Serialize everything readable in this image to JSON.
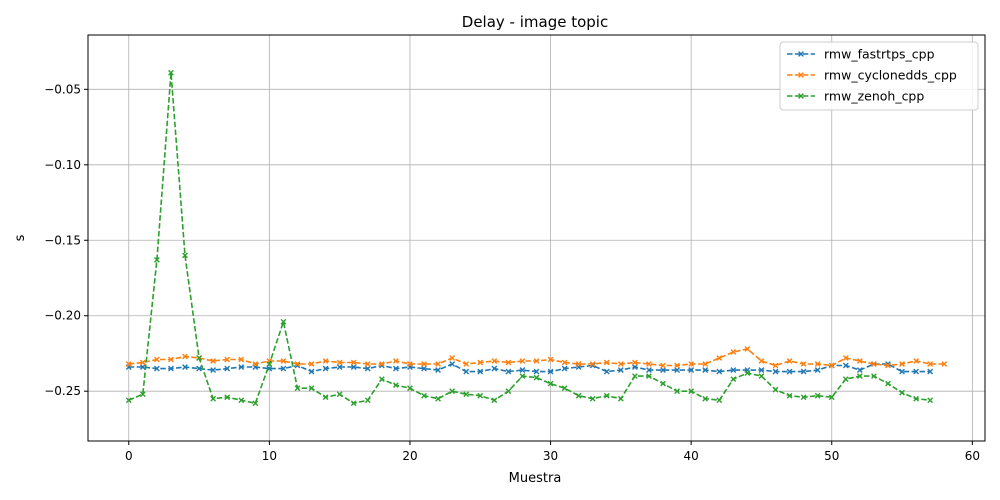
{
  "chart_data": {
    "type": "line",
    "title": "Delay - image topic",
    "xlabel": "Muestra",
    "ylabel": "s",
    "xlim": [
      -2.9,
      60.9
    ],
    "ylim": [
      -0.283,
      -0.014
    ],
    "xticks": [
      0,
      10,
      20,
      30,
      40,
      50,
      60
    ],
    "yticks": [
      -0.25,
      -0.2,
      -0.15,
      -0.1,
      -0.05
    ],
    "xtick_labels": [
      "0",
      "10",
      "20",
      "30",
      "40",
      "50",
      "60"
    ],
    "ytick_labels": [
      "−0.25",
      "−0.20",
      "−0.15",
      "−0.10",
      "−0.05"
    ],
    "grid": true,
    "legend_position": "top-right",
    "series": [
      {
        "name": "rmw_fastrtps_cpp",
        "color": "#1f77b4",
        "x": [
          0,
          1,
          2,
          3,
          4,
          5,
          6,
          7,
          8,
          9,
          10,
          11,
          12,
          13,
          14,
          15,
          16,
          17,
          18,
          19,
          20,
          21,
          22,
          23,
          24,
          25,
          26,
          27,
          28,
          29,
          30,
          31,
          32,
          33,
          34,
          35,
          36,
          37,
          38,
          39,
          40,
          41,
          42,
          43,
          44,
          45,
          46,
          47,
          48,
          49,
          50,
          51,
          52,
          53,
          54,
          55,
          56,
          57
        ],
        "values": [
          -0.234,
          -0.234,
          -0.235,
          -0.235,
          -0.234,
          -0.235,
          -0.236,
          -0.235,
          -0.234,
          -0.234,
          -0.235,
          -0.235,
          -0.233,
          -0.237,
          -0.235,
          -0.234,
          -0.234,
          -0.235,
          -0.233,
          -0.235,
          -0.234,
          -0.235,
          -0.236,
          -0.232,
          -0.237,
          -0.237,
          -0.235,
          -0.237,
          -0.236,
          -0.237,
          -0.237,
          -0.235,
          -0.234,
          -0.233,
          -0.237,
          -0.236,
          -0.234,
          -0.236,
          -0.236,
          -0.236,
          -0.236,
          -0.236,
          -0.237,
          -0.236,
          -0.236,
          -0.236,
          -0.237,
          -0.237,
          -0.237,
          -0.236,
          -0.233,
          -0.233,
          -0.236,
          -0.232,
          -0.232,
          -0.237,
          -0.237,
          -0.237
        ]
      },
      {
        "name": "rmw_cyclonedds_cpp",
        "color": "#ff7f0e",
        "x": [
          0,
          1,
          2,
          3,
          4,
          5,
          6,
          7,
          8,
          9,
          10,
          11,
          12,
          13,
          14,
          15,
          16,
          17,
          18,
          19,
          20,
          21,
          22,
          23,
          24,
          25,
          26,
          27,
          28,
          29,
          30,
          31,
          32,
          33,
          34,
          35,
          36,
          37,
          38,
          39,
          40,
          41,
          42,
          43,
          44,
          45,
          46,
          47,
          48,
          49,
          50,
          51,
          52,
          53,
          54,
          55,
          56,
          57,
          58
        ],
        "values": [
          -0.232,
          -0.231,
          -0.229,
          -0.229,
          -0.227,
          -0.228,
          -0.23,
          -0.229,
          -0.229,
          -0.232,
          -0.23,
          -0.23,
          -0.232,
          -0.232,
          -0.23,
          -0.231,
          -0.231,
          -0.232,
          -0.232,
          -0.23,
          -0.232,
          -0.232,
          -0.232,
          -0.228,
          -0.232,
          -0.231,
          -0.23,
          -0.231,
          -0.23,
          -0.23,
          -0.229,
          -0.231,
          -0.232,
          -0.232,
          -0.231,
          -0.232,
          -0.231,
          -0.232,
          -0.233,
          -0.233,
          -0.232,
          -0.232,
          -0.228,
          -0.224,
          -0.222,
          -0.23,
          -0.233,
          -0.23,
          -0.232,
          -0.232,
          -0.233,
          -0.228,
          -0.23,
          -0.232,
          -0.233,
          -0.232,
          -0.23,
          -0.232,
          -0.232
        ]
      },
      {
        "name": "rmw_zenoh_cpp",
        "color": "#2ca02c",
        "x": [
          0,
          1,
          2,
          3,
          4,
          5,
          6,
          7,
          8,
          9,
          10,
          11,
          12,
          13,
          14,
          15,
          16,
          17,
          18,
          19,
          20,
          21,
          22,
          23,
          24,
          25,
          26,
          27,
          28,
          29,
          30,
          31,
          32,
          33,
          34,
          35,
          36,
          37,
          38,
          39,
          40,
          41,
          42,
          43,
          44,
          45,
          46,
          47,
          48,
          49,
          50,
          51,
          52,
          53,
          54,
          55,
          56,
          57
        ],
        "values": [
          -0.256,
          -0.252,
          -0.163,
          -0.039,
          -0.16,
          -0.228,
          -0.255,
          -0.254,
          -0.256,
          -0.258,
          -0.232,
          -0.204,
          -0.248,
          -0.248,
          -0.254,
          -0.252,
          -0.258,
          -0.256,
          -0.242,
          -0.246,
          -0.248,
          -0.253,
          -0.255,
          -0.25,
          -0.252,
          -0.253,
          -0.256,
          -0.25,
          -0.24,
          -0.241,
          -0.245,
          -0.248,
          -0.253,
          -0.255,
          -0.253,
          -0.255,
          -0.24,
          -0.24,
          -0.245,
          -0.25,
          -0.25,
          -0.255,
          -0.256,
          -0.242,
          -0.238,
          -0.24,
          -0.249,
          -0.253,
          -0.254,
          -0.253,
          -0.254,
          -0.242,
          -0.24,
          -0.24,
          -0.245,
          -0.251,
          -0.255,
          -0.256
        ]
      }
    ]
  }
}
